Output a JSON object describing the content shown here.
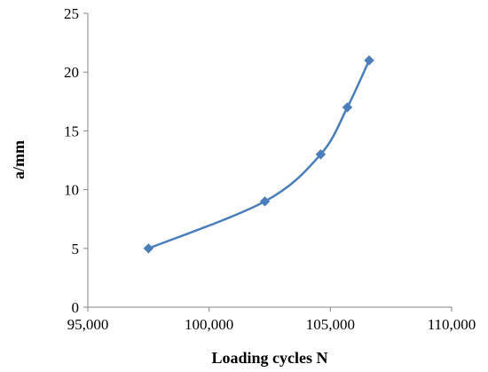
{
  "chart_data": {
    "type": "scatter",
    "title": "",
    "xlabel": "Loading cycles N",
    "ylabel": "a/mm",
    "xlim": [
      95000,
      110000
    ],
    "ylim": [
      0,
      25
    ],
    "x_ticks": [
      95000,
      100000,
      105000,
      110000
    ],
    "x_tick_labels": [
      "95,000",
      "100,000",
      "105,000",
      "110,000"
    ],
    "y_ticks": [
      0,
      5,
      10,
      15,
      20,
      25
    ],
    "y_tick_labels": [
      "0",
      "5",
      "10",
      "15",
      "20",
      "25"
    ],
    "grid": false,
    "smooth_line": true,
    "marker": "diamond",
    "series": [
      {
        "color": "#4a7ebb",
        "points": [
          {
            "x": 97500,
            "y": 5
          },
          {
            "x": 102300,
            "y": 9
          },
          {
            "x": 104600,
            "y": 13
          },
          {
            "x": 105700,
            "y": 17
          },
          {
            "x": 106600,
            "y": 21
          }
        ]
      }
    ]
  }
}
